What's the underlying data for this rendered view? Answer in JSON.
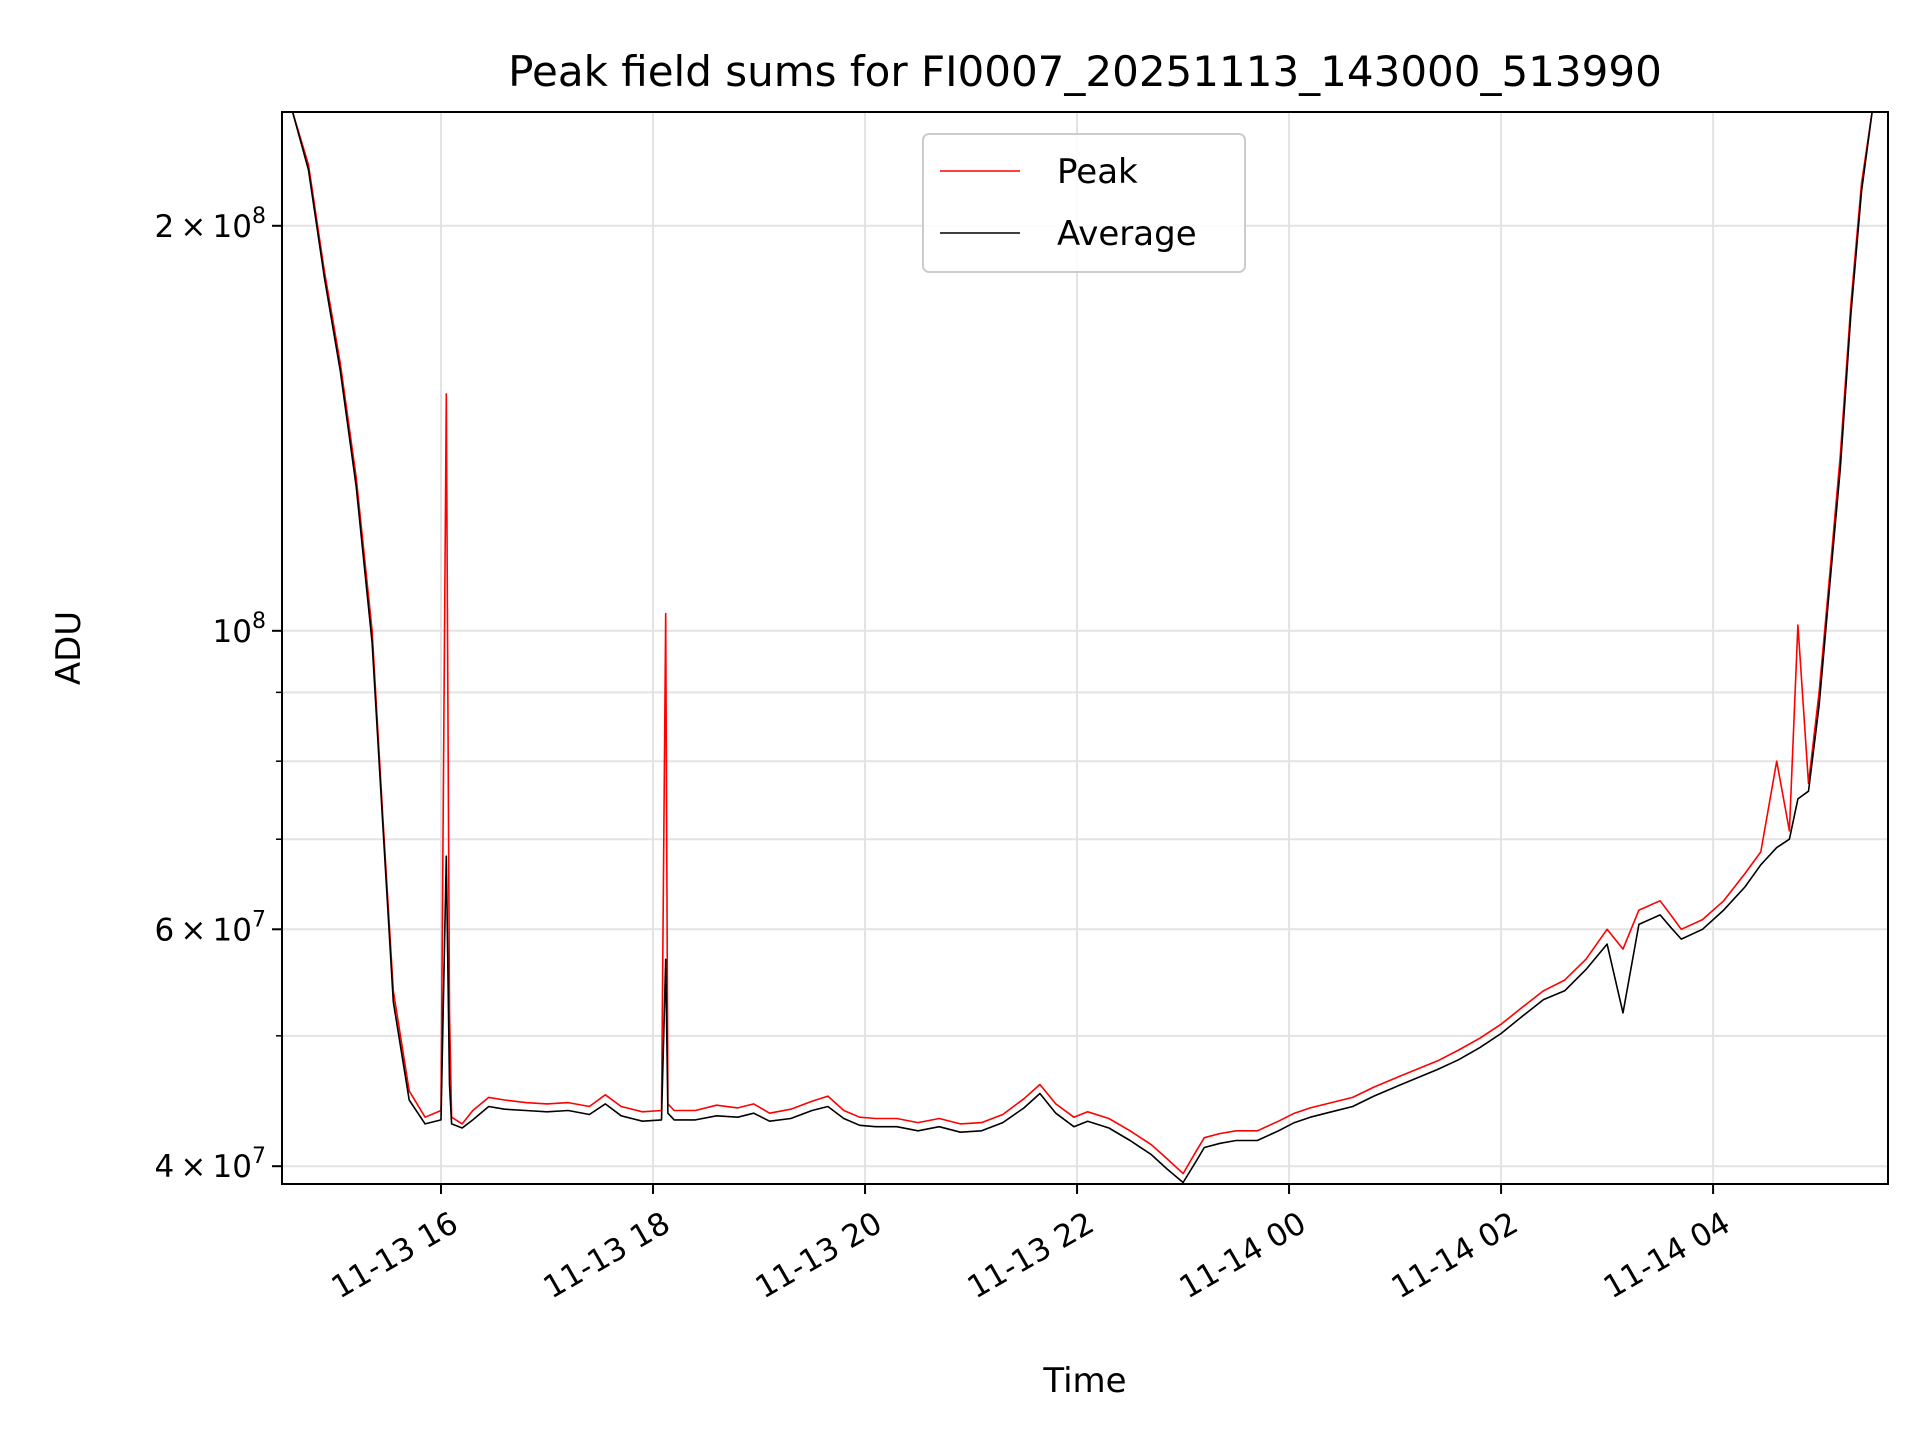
{
  "chart_data": {
    "type": "line",
    "title": "Peak field sums for FI0007_20251113_143000_513990",
    "xlabel": "Time",
    "ylabel": "ADU",
    "yscale": "log",
    "grid": true,
    "legend_placement": "upper-center",
    "x_units": "hours since 2025-11-13 00:00",
    "xlim": [
      14.5,
      29.65
    ],
    "ylim": [
      38800000,
      243000000
    ],
    "x_ticks": [
      {
        "value": 16,
        "label": "11-13 16"
      },
      {
        "value": 18,
        "label": "11-13 18"
      },
      {
        "value": 20,
        "label": "11-13 20"
      },
      {
        "value": 22,
        "label": "11-13 22"
      },
      {
        "value": 24,
        "label": "11-14 00"
      },
      {
        "value": 26,
        "label": "11-14 02"
      },
      {
        "value": 28,
        "label": "11-14 04"
      }
    ],
    "y_major_ticks": [
      {
        "value": 40000000,
        "base": "4",
        "exp": "7",
        "times": "×10",
        "kind": "mant"
      },
      {
        "value": 60000000,
        "base": "6",
        "exp": "7",
        "times": "×10",
        "kind": "mant"
      },
      {
        "value": 100000000,
        "base": "10",
        "exp": "8",
        "times": "",
        "kind": "pow"
      },
      {
        "value": 200000000,
        "base": "2",
        "exp": "8",
        "times": "×10",
        "kind": "mant"
      }
    ],
    "y_minor_ticks": [
      50000000,
      70000000,
      80000000,
      90000000
    ],
    "series": [
      {
        "name": "Peak",
        "color": "#ff0000",
        "x": [
          14.6,
          14.75,
          14.9,
          15.05,
          15.2,
          15.35,
          15.45,
          15.55,
          15.7,
          15.85,
          16.0,
          16.05,
          16.08,
          16.1,
          16.2,
          16.3,
          16.45,
          16.6,
          16.8,
          17.0,
          17.2,
          17.4,
          17.55,
          17.7,
          17.9,
          18.08,
          18.12,
          18.14,
          18.2,
          18.4,
          18.6,
          18.8,
          18.95,
          19.1,
          19.3,
          19.5,
          19.65,
          19.8,
          19.95,
          20.1,
          20.3,
          20.5,
          20.7,
          20.9,
          21.1,
          21.3,
          21.5,
          21.65,
          21.8,
          21.97,
          22.1,
          22.3,
          22.5,
          22.7,
          22.85,
          23.0,
          23.12,
          23.2,
          23.35,
          23.5,
          23.7,
          23.9,
          24.05,
          24.2,
          24.4,
          24.6,
          24.8,
          25.0,
          25.2,
          25.4,
          25.6,
          25.8,
          26.0,
          26.2,
          26.4,
          26.6,
          26.8,
          27.0,
          27.15,
          27.3,
          27.5,
          27.6,
          27.7,
          27.9,
          28.1,
          28.3,
          28.45,
          28.6,
          28.72,
          28.8,
          28.9,
          29.0,
          29.1,
          29.2,
          29.3,
          29.4,
          29.5,
          29.6
        ],
        "y": [
          243000000,
          222000000,
          185000000,
          158000000,
          130000000,
          100000000,
          73000000,
          54000000,
          45500000,
          43500000,
          44000000,
          150000000,
          52000000,
          43500000,
          43000000,
          44000000,
          45000000,
          44800000,
          44600000,
          44500000,
          44600000,
          44300000,
          45200000,
          44300000,
          43900000,
          44000000,
          103000000,
          44500000,
          44000000,
          44000000,
          44400000,
          44200000,
          44500000,
          43800000,
          44100000,
          44700000,
          45100000,
          44000000,
          43500000,
          43400000,
          43400000,
          43100000,
          43400000,
          43000000,
          43100000,
          43700000,
          44900000,
          46000000,
          44500000,
          43500000,
          43900000,
          43400000,
          42500000,
          41500000,
          40500000,
          39500000,
          41000000,
          42000000,
          42300000,
          42500000,
          42500000,
          43200000,
          43800000,
          44200000,
          44600000,
          45000000,
          45800000,
          46500000,
          47200000,
          47900000,
          48800000,
          49800000,
          51000000,
          52500000,
          54000000,
          55000000,
          57000000,
          60000000,
          58000000,
          62000000,
          63000000,
          61500000,
          60000000,
          61000000,
          63000000,
          66000000,
          68500000,
          80000000,
          71000000,
          101000000,
          77000000,
          90000000,
          110000000,
          135000000,
          175000000,
          215000000,
          243000000,
          243000000
        ]
      },
      {
        "name": "Average",
        "color": "#000000",
        "x": [
          14.6,
          14.75,
          14.9,
          15.05,
          15.2,
          15.35,
          15.45,
          15.55,
          15.7,
          15.85,
          16.0,
          16.05,
          16.08,
          16.1,
          16.2,
          16.3,
          16.45,
          16.6,
          16.8,
          17.0,
          17.2,
          17.4,
          17.55,
          17.7,
          17.9,
          18.08,
          18.12,
          18.14,
          18.2,
          18.4,
          18.6,
          18.8,
          18.95,
          19.1,
          19.3,
          19.5,
          19.65,
          19.8,
          19.95,
          20.1,
          20.3,
          20.5,
          20.7,
          20.9,
          21.1,
          21.3,
          21.5,
          21.65,
          21.8,
          21.97,
          22.1,
          22.3,
          22.5,
          22.7,
          22.85,
          23.0,
          23.12,
          23.2,
          23.35,
          23.5,
          23.7,
          23.9,
          24.05,
          24.2,
          24.4,
          24.6,
          24.8,
          25.0,
          25.2,
          25.4,
          25.6,
          25.8,
          26.0,
          26.2,
          26.4,
          26.6,
          26.8,
          27.0,
          27.15,
          27.3,
          27.5,
          27.6,
          27.7,
          27.9,
          28.1,
          28.3,
          28.45,
          28.6,
          28.72,
          28.8,
          28.9,
          29.0,
          29.1,
          29.2,
          29.3,
          29.4,
          29.5,
          29.6
        ],
        "y": [
          243000000,
          220000000,
          183000000,
          156000000,
          128000000,
          98000000,
          72000000,
          53000000,
          44800000,
          43000000,
          43300000,
          68000000,
          46000000,
          43000000,
          42700000,
          43300000,
          44300000,
          44100000,
          44000000,
          43900000,
          44000000,
          43700000,
          44500000,
          43600000,
          43200000,
          43300000,
          57000000,
          43800000,
          43300000,
          43300000,
          43600000,
          43500000,
          43800000,
          43200000,
          43400000,
          44000000,
          44300000,
          43400000,
          42900000,
          42800000,
          42800000,
          42500000,
          42800000,
          42400000,
          42500000,
          43100000,
          44200000,
          45300000,
          43800000,
          42800000,
          43200000,
          42700000,
          41800000,
          40800000,
          39800000,
          38900000,
          40300000,
          41300000,
          41600000,
          41800000,
          41800000,
          42500000,
          43100000,
          43500000,
          43900000,
          44300000,
          45100000,
          45800000,
          46500000,
          47200000,
          48000000,
          49000000,
          50200000,
          51700000,
          53200000,
          54000000,
          56000000,
          58500000,
          52000000,
          60500000,
          61500000,
          60200000,
          59000000,
          60000000,
          62000000,
          64500000,
          67000000,
          69000000,
          70000000,
          75000000,
          76000000,
          88000000,
          108000000,
          132000000,
          172000000,
          212000000,
          243000000,
          243000000
        ]
      }
    ]
  }
}
